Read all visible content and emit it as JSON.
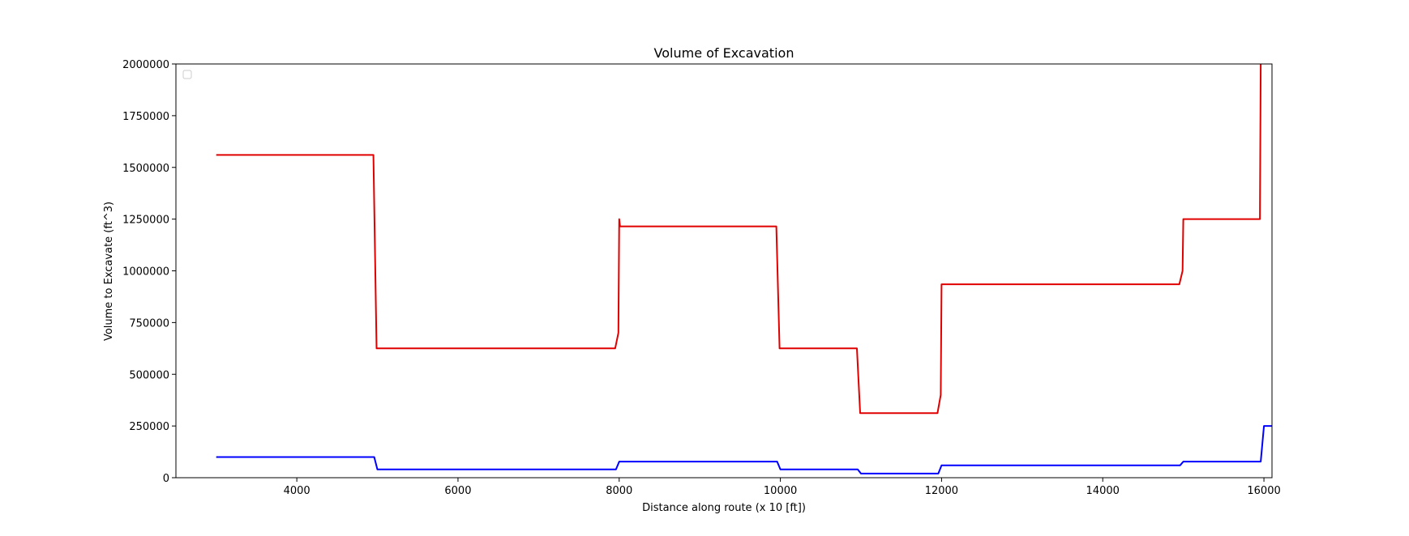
{
  "chart_data": {
    "type": "line",
    "title": "Volume of Excavation",
    "xlabel": "Distance along route (x 10 [ft])",
    "ylabel": "Volume to Excavate (ft^3)",
    "xlim": [
      2500,
      16100
    ],
    "ylim": [
      0,
      2000000
    ],
    "xticks": [
      4000,
      6000,
      8000,
      10000,
      12000,
      14000,
      16000
    ],
    "yticks": [
      0,
      250000,
      500000,
      750000,
      1000000,
      1250000,
      1500000,
      1750000,
      2000000
    ],
    "grid": false,
    "legend": {
      "placement": "top-left",
      "entries": []
    },
    "series": [
      {
        "color": "#e00000",
        "x": [
          3000,
          4950,
          4990,
          5000,
          7950,
          7990,
          8000,
          8010,
          9950,
          9990,
          10000,
          10950,
          10990,
          11000,
          11950,
          11990,
          12000,
          14950,
          14990,
          15000,
          15950,
          15960
        ],
        "y": [
          1560000,
          1560000,
          625000,
          625000,
          625000,
          700000,
          1250000,
          1215000,
          1215000,
          625000,
          625000,
          625000,
          312500,
          312500,
          312500,
          400000,
          935000,
          935000,
          1000000,
          1250000,
          1250000,
          2000000
        ]
      },
      {
        "color": "#0000ff",
        "x": [
          3000,
          4960,
          5000,
          7960,
          8000,
          9960,
          10000,
          10960,
          11000,
          11960,
          12000,
          14960,
          15000,
          15960,
          16000,
          16100
        ],
        "y": [
          100000,
          100000,
          40000,
          40000,
          78000,
          78000,
          40000,
          40000,
          20000,
          20000,
          60000,
          60000,
          78000,
          78000,
          250000,
          250000
        ]
      }
    ]
  }
}
